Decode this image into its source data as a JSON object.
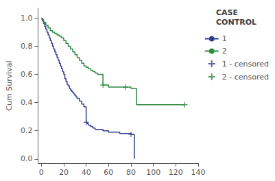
{
  "chart_data": {
    "type": "step",
    "ylabel": "Cum Survival",
    "legend_title": "CASE\nCONTROL",
    "xlim": [
      -3,
      140
    ],
    "ylim": [
      -0.03,
      1.07
    ],
    "xticks": [
      0,
      20,
      40,
      60,
      80,
      100,
      120,
      140
    ],
    "yticks": [
      {
        "value": 0.0,
        "label": "0.0"
      },
      0.2,
      0.4,
      0.6,
      0.8,
      {
        "value": 1.0,
        "label": "1.0"
      }
    ],
    "grid": false,
    "legend": "right",
    "series": [
      {
        "name": "1",
        "type": "step",
        "color": "#2f3d8c",
        "x": [
          0,
          1,
          2,
          3,
          4,
          5,
          6,
          7,
          8,
          9,
          10,
          11,
          12,
          13,
          14,
          15,
          16,
          17,
          18,
          19,
          20,
          21,
          22,
          23,
          24,
          25,
          26,
          27,
          28,
          29,
          30,
          31,
          32,
          34,
          36,
          38,
          40,
          41,
          42,
          44,
          46,
          48,
          50,
          55,
          60,
          65,
          70,
          75,
          78,
          80,
          82,
          83
        ],
        "values": [
          1.0,
          0.98,
          0.96,
          0.94,
          0.92,
          0.9,
          0.88,
          0.86,
          0.84,
          0.82,
          0.8,
          0.78,
          0.76,
          0.74,
          0.72,
          0.7,
          0.68,
          0.66,
          0.64,
          0.62,
          0.6,
          0.57,
          0.55,
          0.53,
          0.52,
          0.5,
          0.49,
          0.48,
          0.47,
          0.46,
          0.45,
          0.44,
          0.43,
          0.41,
          0.39,
          0.37,
          0.26,
          0.25,
          0.24,
          0.23,
          0.22,
          0.21,
          0.21,
          0.2,
          0.19,
          0.19,
          0.18,
          0.18,
          0.18,
          0.175,
          0.175,
          0.0
        ]
      },
      {
        "name": "2",
        "type": "step",
        "color": "#2a8a3e",
        "x": [
          0,
          2,
          4,
          6,
          8,
          10,
          12,
          14,
          16,
          18,
          20,
          22,
          24,
          26,
          28,
          30,
          32,
          34,
          36,
          38,
          40,
          42,
          44,
          46,
          48,
          50,
          55,
          60,
          65,
          70,
          75,
          80,
          85,
          90,
          95,
          100,
          110,
          120,
          128
        ],
        "values": [
          0.99,
          0.97,
          0.95,
          0.93,
          0.91,
          0.9,
          0.89,
          0.88,
          0.87,
          0.86,
          0.84,
          0.82,
          0.8,
          0.78,
          0.76,
          0.74,
          0.72,
          0.7,
          0.68,
          0.66,
          0.65,
          0.64,
          0.63,
          0.62,
          0.61,
          0.6,
          0.525,
          0.51,
          0.51,
          0.51,
          0.51,
          0.5,
          0.385,
          0.385,
          0.385,
          0.385,
          0.385,
          0.385,
          0.385
        ]
      },
      {
        "name": "1 - censored",
        "type": "scatter",
        "marker": "plus",
        "color": "#2f3d8c",
        "x": [
          40,
          80
        ],
        "values": [
          0.26,
          0.175
        ]
      },
      {
        "name": "2 - censored",
        "type": "scatter",
        "marker": "plus",
        "color": "#2a8a3e",
        "x": [
          55,
          75,
          128
        ],
        "values": [
          0.525,
          0.51,
          0.385
        ]
      }
    ]
  }
}
